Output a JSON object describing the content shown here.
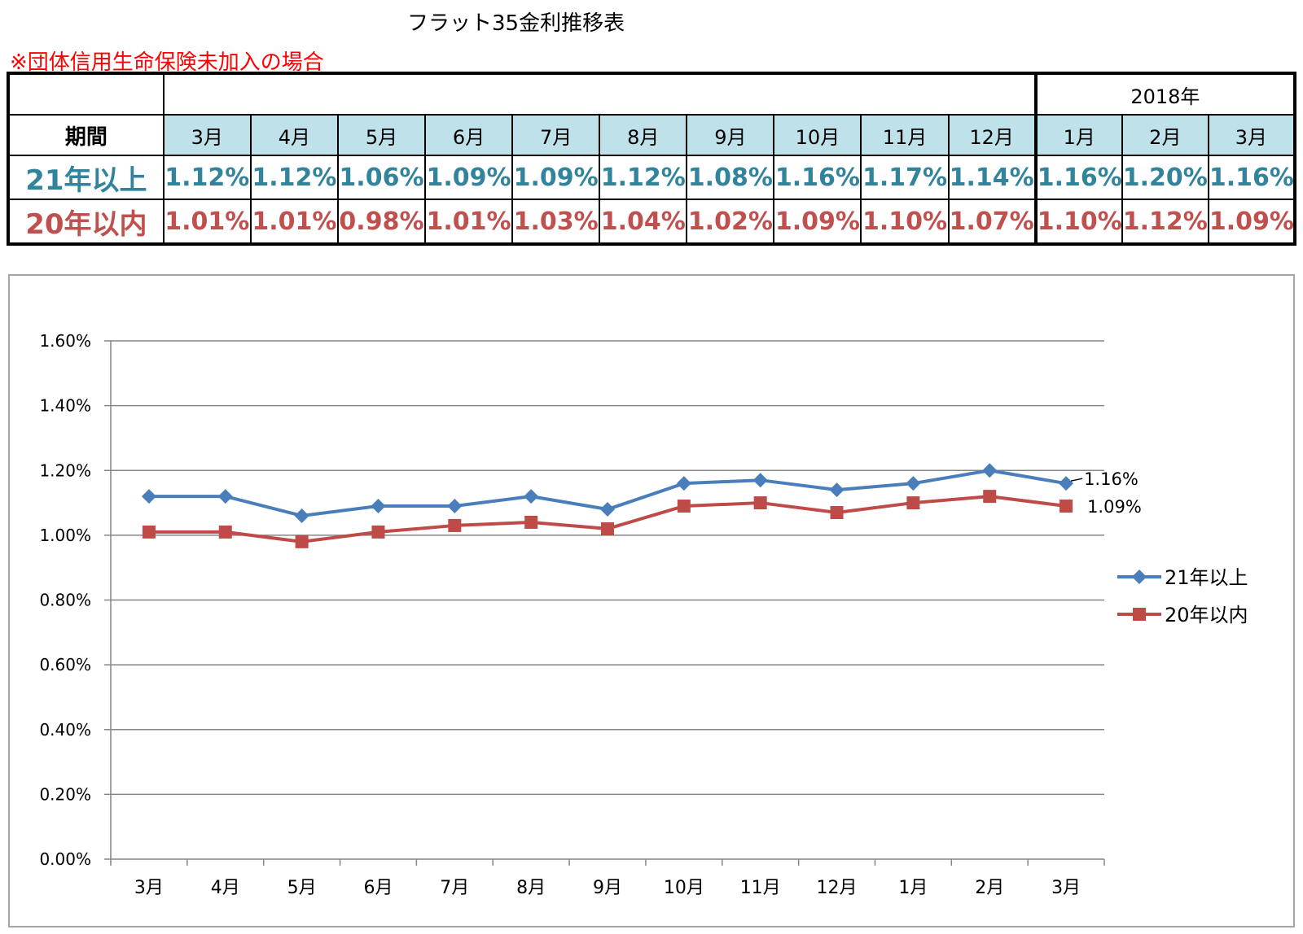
{
  "title": "フラット35金利推移表",
  "note": "※団体信用生命保険未加入の場合",
  "table": {
    "year_label": "2018年",
    "period_label": "期間",
    "months": [
      "3月",
      "4月",
      "5月",
      "6月",
      "7月",
      "8月",
      "9月",
      "10月",
      "11月",
      "12月",
      "1月",
      "2月",
      "3月"
    ],
    "rows": [
      {
        "label": "21年以上",
        "values": [
          "1.12%",
          "1.12%",
          "1.06%",
          "1.09%",
          "1.09%",
          "1.12%",
          "1.08%",
          "1.16%",
          "1.17%",
          "1.14%",
          "1.16%",
          "1.20%",
          "1.16%"
        ]
      },
      {
        "label": "20年以内",
        "values": [
          "1.01%",
          "1.01%",
          "0.98%",
          "1.01%",
          "1.03%",
          "1.04%",
          "1.02%",
          "1.09%",
          "1.10%",
          "1.07%",
          "1.10%",
          "1.12%",
          "1.09%"
        ]
      }
    ]
  },
  "chart_data": {
    "type": "line",
    "categories": [
      "3月",
      "4月",
      "5月",
      "6月",
      "7月",
      "8月",
      "9月",
      "10月",
      "11月",
      "12月",
      "1月",
      "2月",
      "3月"
    ],
    "series": [
      {
        "name": "21年以上",
        "color": "#4a7ebb",
        "marker": "diamond",
        "values": [
          1.12,
          1.12,
          1.06,
          1.09,
          1.09,
          1.12,
          1.08,
          1.16,
          1.17,
          1.14,
          1.16,
          1.2,
          1.16
        ]
      },
      {
        "name": "20年以内",
        "color": "#be4b48",
        "marker": "square",
        "values": [
          1.01,
          1.01,
          0.98,
          1.01,
          1.03,
          1.04,
          1.02,
          1.09,
          1.1,
          1.07,
          1.1,
          1.12,
          1.09
        ]
      }
    ],
    "ylim": [
      0,
      1.6
    ],
    "yticks": [
      "0.00%",
      "0.20%",
      "0.40%",
      "0.60%",
      "0.80%",
      "1.00%",
      "1.20%",
      "1.40%",
      "1.60%"
    ],
    "grid": true,
    "legend": "right",
    "annotations": [
      "1.16%",
      "1.09%"
    ]
  }
}
